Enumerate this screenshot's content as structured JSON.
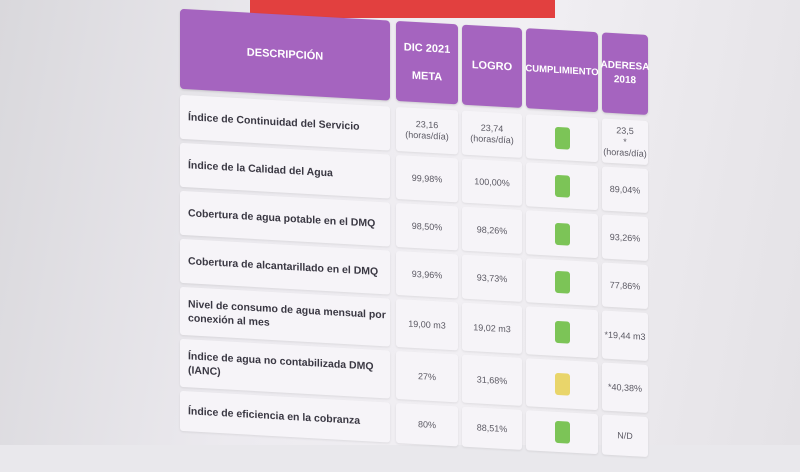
{
  "header": {
    "descripcion": "DESCRIPCIÓN",
    "dic": "DIC 2021",
    "meta": "META",
    "logro": "LOGRO",
    "cumplimiento": "CUMPLIMIENTO",
    "aderesa_1": "ADERESA",
    "aderesa_2": "2018"
  },
  "colors": {
    "header_purple": "#a564bf",
    "green": "#7cc457",
    "yellow": "#e9d56a",
    "top_red": "#e2403f"
  },
  "rows": [
    {
      "descripcion": "Índice de Continuidad del Servicio",
      "meta_1": "23,16",
      "meta_2": "(horas/día)",
      "logro_1": "23,74",
      "logro_2": "(horas/día)",
      "cumplimiento": "green",
      "aderesa_1": "23,5",
      "aderesa_2": "*(horas/día)"
    },
    {
      "descripcion": "Índice de la Calidad del Agua",
      "meta": "99,98%",
      "logro": "100,00%",
      "cumplimiento": "green",
      "aderesa": "89,04%"
    },
    {
      "descripcion": "Cobertura de agua potable en el DMQ",
      "meta": "98,50%",
      "logro": "98,26%",
      "cumplimiento": "green",
      "aderesa": "93,26%"
    },
    {
      "descripcion": "Cobertura de alcantarillado en el DMQ",
      "meta": "93,96%",
      "logro": "93,73%",
      "cumplimiento": "green",
      "aderesa": "77,86%"
    },
    {
      "descripcion_1": "Nivel de consumo de agua mensual por",
      "descripcion_2": "conexión  al mes",
      "meta": "19,00 m3",
      "logro": "19,02 m3",
      "cumplimiento": "green",
      "aderesa": "*19,44 m3"
    },
    {
      "descripcion_1": "Índice de agua no contabilizada DMQ",
      "descripcion_2": "(IANC)",
      "meta": "27%",
      "logro": "31,68%",
      "cumplimiento": "yellow",
      "aderesa": "*40,38%"
    },
    {
      "descripcion": "Índice de eficiencia en la cobranza",
      "meta": "80%",
      "logro": "88,51%",
      "cumplimiento": "green",
      "aderesa": "N/D"
    }
  ]
}
